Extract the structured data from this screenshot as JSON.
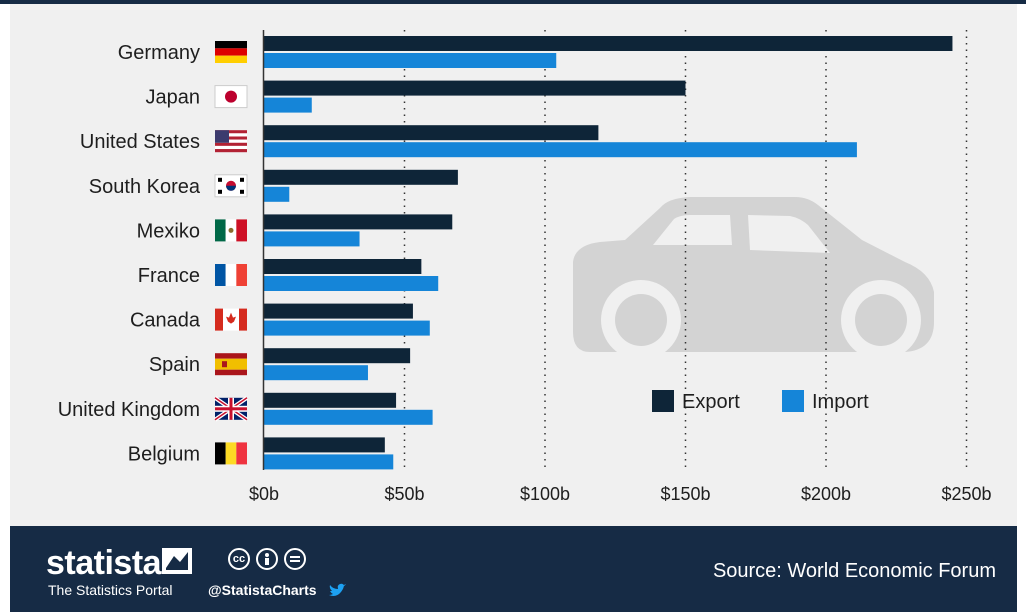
{
  "chart_data": {
    "type": "bar",
    "orientation": "horizontal",
    "categories": [
      "Germany",
      "Japan",
      "United States",
      "South Korea",
      "Mexiko",
      "France",
      "Canada",
      "Spain",
      "United Kingdom",
      "Belgium"
    ],
    "series": [
      {
        "name": "Export",
        "color": "#0e2538",
        "values": [
          245,
          150,
          119,
          69,
          67,
          56,
          53,
          52,
          47,
          43
        ]
      },
      {
        "name": "Import",
        "color": "#1585d8",
        "values": [
          104,
          17,
          211,
          9,
          34,
          62,
          59,
          37,
          60,
          46
        ]
      }
    ],
    "x_ticks": [
      "$0b",
      "$50b",
      "$100b",
      "$150b",
      "$200b",
      "$250b"
    ],
    "xlim": [
      0,
      250
    ],
    "grid": "vertical dotted",
    "legend_position": "bottom-right"
  },
  "footer": {
    "brand": "statista",
    "tagline": "The Statistics Portal",
    "handle": "@StatistaCharts",
    "cc_icons": [
      "cc",
      "by",
      "nd"
    ],
    "source": "Source: World Economic Forum"
  },
  "colors": {
    "footer_bg": "#162b45",
    "panel_bg": "#f0f0f0",
    "car": "#d3d3d3"
  }
}
